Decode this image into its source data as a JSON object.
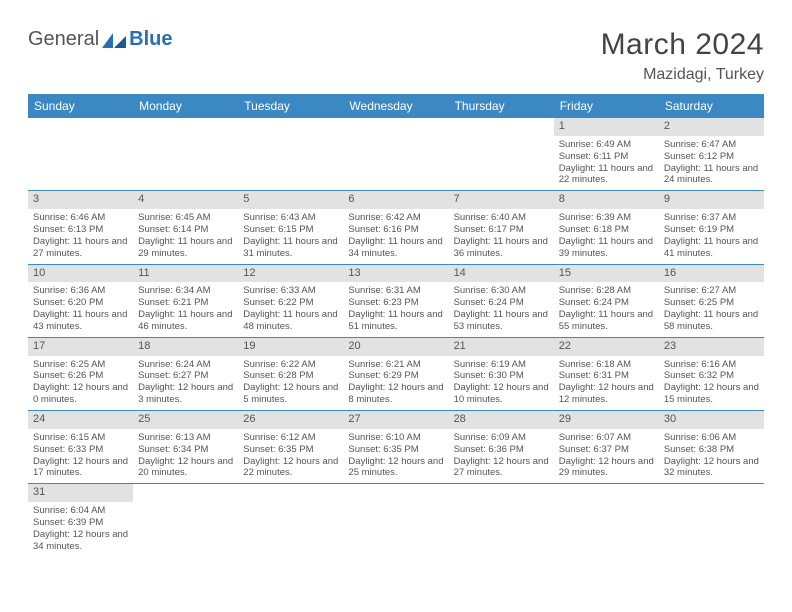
{
  "logo": {
    "text1": "General",
    "text2": "Blue"
  },
  "title": "March 2024",
  "location": "Mazidagi, Turkey",
  "colors": {
    "header_bg": "#3b88c3",
    "header_fg": "#ffffff",
    "daynum_bg": "#e2e2e2",
    "grid_line": "#3b88c3",
    "text": "#555555",
    "page_bg": "#ffffff"
  },
  "day_names": [
    "Sunday",
    "Monday",
    "Tuesday",
    "Wednesday",
    "Thursday",
    "Friday",
    "Saturday"
  ],
  "grid": [
    [
      null,
      null,
      null,
      null,
      null,
      {
        "n": "1",
        "sr": "6:49 AM",
        "ss": "6:11 PM",
        "dl": "11 hours and 22 minutes."
      },
      {
        "n": "2",
        "sr": "6:47 AM",
        "ss": "6:12 PM",
        "dl": "11 hours and 24 minutes."
      }
    ],
    [
      {
        "n": "3",
        "sr": "6:46 AM",
        "ss": "6:13 PM",
        "dl": "11 hours and 27 minutes."
      },
      {
        "n": "4",
        "sr": "6:45 AM",
        "ss": "6:14 PM",
        "dl": "11 hours and 29 minutes."
      },
      {
        "n": "5",
        "sr": "6:43 AM",
        "ss": "6:15 PM",
        "dl": "11 hours and 31 minutes."
      },
      {
        "n": "6",
        "sr": "6:42 AM",
        "ss": "6:16 PM",
        "dl": "11 hours and 34 minutes."
      },
      {
        "n": "7",
        "sr": "6:40 AM",
        "ss": "6:17 PM",
        "dl": "11 hours and 36 minutes."
      },
      {
        "n": "8",
        "sr": "6:39 AM",
        "ss": "6:18 PM",
        "dl": "11 hours and 39 minutes."
      },
      {
        "n": "9",
        "sr": "6:37 AM",
        "ss": "6:19 PM",
        "dl": "11 hours and 41 minutes."
      }
    ],
    [
      {
        "n": "10",
        "sr": "6:36 AM",
        "ss": "6:20 PM",
        "dl": "11 hours and 43 minutes."
      },
      {
        "n": "11",
        "sr": "6:34 AM",
        "ss": "6:21 PM",
        "dl": "11 hours and 46 minutes."
      },
      {
        "n": "12",
        "sr": "6:33 AM",
        "ss": "6:22 PM",
        "dl": "11 hours and 48 minutes."
      },
      {
        "n": "13",
        "sr": "6:31 AM",
        "ss": "6:23 PM",
        "dl": "11 hours and 51 minutes."
      },
      {
        "n": "14",
        "sr": "6:30 AM",
        "ss": "6:24 PM",
        "dl": "11 hours and 53 minutes."
      },
      {
        "n": "15",
        "sr": "6:28 AM",
        "ss": "6:24 PM",
        "dl": "11 hours and 55 minutes."
      },
      {
        "n": "16",
        "sr": "6:27 AM",
        "ss": "6:25 PM",
        "dl": "11 hours and 58 minutes."
      }
    ],
    [
      {
        "n": "17",
        "sr": "6:25 AM",
        "ss": "6:26 PM",
        "dl": "12 hours and 0 minutes."
      },
      {
        "n": "18",
        "sr": "6:24 AM",
        "ss": "6:27 PM",
        "dl": "12 hours and 3 minutes."
      },
      {
        "n": "19",
        "sr": "6:22 AM",
        "ss": "6:28 PM",
        "dl": "12 hours and 5 minutes."
      },
      {
        "n": "20",
        "sr": "6:21 AM",
        "ss": "6:29 PM",
        "dl": "12 hours and 8 minutes."
      },
      {
        "n": "21",
        "sr": "6:19 AM",
        "ss": "6:30 PM",
        "dl": "12 hours and 10 minutes."
      },
      {
        "n": "22",
        "sr": "6:18 AM",
        "ss": "6:31 PM",
        "dl": "12 hours and 12 minutes."
      },
      {
        "n": "23",
        "sr": "6:16 AM",
        "ss": "6:32 PM",
        "dl": "12 hours and 15 minutes."
      }
    ],
    [
      {
        "n": "24",
        "sr": "6:15 AM",
        "ss": "6:33 PM",
        "dl": "12 hours and 17 minutes."
      },
      {
        "n": "25",
        "sr": "6:13 AM",
        "ss": "6:34 PM",
        "dl": "12 hours and 20 minutes."
      },
      {
        "n": "26",
        "sr": "6:12 AM",
        "ss": "6:35 PM",
        "dl": "12 hours and 22 minutes."
      },
      {
        "n": "27",
        "sr": "6:10 AM",
        "ss": "6:35 PM",
        "dl": "12 hours and 25 minutes."
      },
      {
        "n": "28",
        "sr": "6:09 AM",
        "ss": "6:36 PM",
        "dl": "12 hours and 27 minutes."
      },
      {
        "n": "29",
        "sr": "6:07 AM",
        "ss": "6:37 PM",
        "dl": "12 hours and 29 minutes."
      },
      {
        "n": "30",
        "sr": "6:06 AM",
        "ss": "6:38 PM",
        "dl": "12 hours and 32 minutes."
      }
    ],
    [
      {
        "n": "31",
        "sr": "6:04 AM",
        "ss": "6:39 PM",
        "dl": "12 hours and 34 minutes."
      },
      null,
      null,
      null,
      null,
      null,
      null
    ]
  ],
  "labels": {
    "sunrise": "Sunrise:",
    "sunset": "Sunset:",
    "daylight": "Daylight:"
  }
}
